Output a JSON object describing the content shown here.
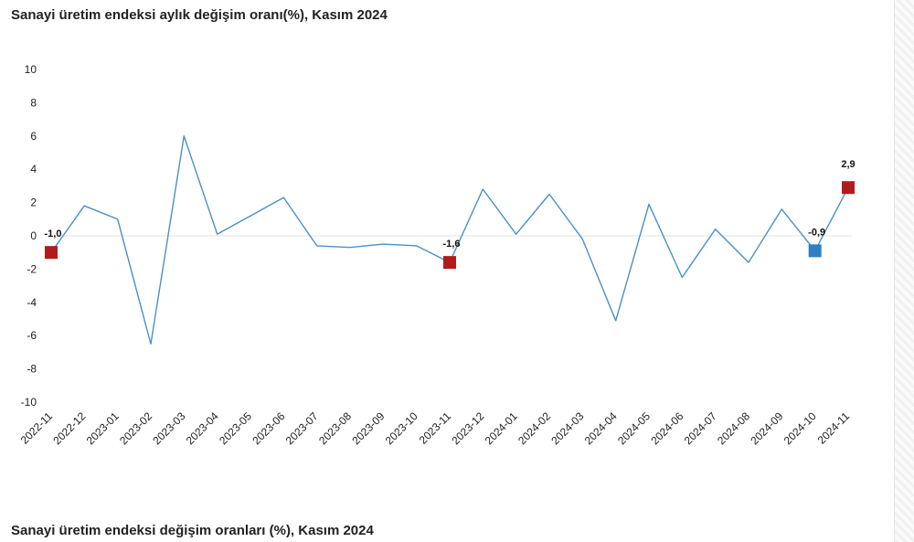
{
  "chart_data": {
    "type": "line",
    "title": "Sanayi üretim endeksi aylık değişim oranı(%), Kasım 2024",
    "xlabel": "",
    "ylabel": "",
    "ylim": [
      -10,
      10
    ],
    "yticks": [
      10,
      8,
      6,
      4,
      2,
      0,
      -2,
      -4,
      -6,
      -8,
      -10
    ],
    "grid": "y-zero-line-only",
    "legend": "none",
    "categories": [
      "2022-11",
      "2022-12",
      "2023-01",
      "2023-02",
      "2023-03",
      "2023-04",
      "2023-05",
      "2023-06",
      "2023-07",
      "2023-08",
      "2023-09",
      "2023-10",
      "2023-11",
      "2023-12",
      "2024-01",
      "2024-02",
      "2024-03",
      "2024-04",
      "2024-05",
      "2024-06",
      "2024-07",
      "2024-08",
      "2024-09",
      "2024-10",
      "2024-11"
    ],
    "series": [
      {
        "color": "#4a90c8",
        "values": [
          -1.0,
          1.8,
          1.0,
          -6.5,
          6.0,
          0.1,
          1.2,
          2.3,
          -0.6,
          -0.7,
          -0.5,
          -0.6,
          -1.6,
          2.8,
          0.1,
          2.5,
          -0.2,
          -5.1,
          1.9,
          -2.5,
          0.4,
          -1.6,
          1.6,
          -0.9,
          2.9
        ]
      }
    ],
    "highlights": [
      {
        "category": "2022-11",
        "label": "-1,0",
        "color": "#b01c1c"
      },
      {
        "category": "2023-11",
        "label": "-1,6",
        "color": "#b01c1c"
      },
      {
        "category": "2024-10",
        "label": "-0,9",
        "color": "#2f7ec1"
      },
      {
        "category": "2024-11",
        "label": "2,9",
        "color": "#b01c1c"
      }
    ]
  },
  "next_section": {
    "title": "Sanayi üretim endeksi değişim oranları (%), Kasım 2024"
  }
}
